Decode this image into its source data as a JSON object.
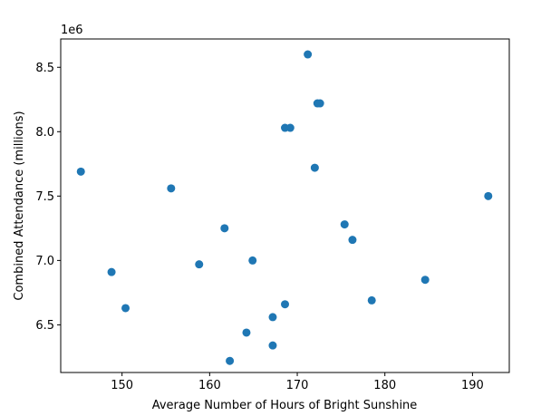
{
  "chart_data": {
    "type": "scatter",
    "title": "",
    "xlabel": "Average Number of Hours of Bright Sunshine",
    "ylabel": "Combined Attendance (millions)",
    "y_offset_label": "1e6",
    "xlim": [
      143.0,
      194.2
    ],
    "ylim": [
      6.13,
      8.72
    ],
    "xticks": [
      150,
      160,
      170,
      180,
      190
    ],
    "xtick_labels": [
      "150",
      "160",
      "170",
      "180",
      "190"
    ],
    "yticks": [
      6.5,
      7.0,
      7.5,
      8.0,
      8.5
    ],
    "ytick_labels": [
      "6.5",
      "7.0",
      "7.5",
      "8.0",
      "8.5"
    ],
    "grid": false,
    "legend": false,
    "marker_color": "#1f77b4",
    "series": [
      {
        "x": [
          171.2,
          172.3,
          172.6,
          168.6,
          169.2,
          145.3,
          172.0,
          155.6,
          191.8,
          161.7,
          175.4,
          176.3,
          164.9,
          158.8,
          148.8,
          184.6,
          178.5,
          150.4,
          168.6,
          167.2,
          164.2,
          167.2,
          162.3
        ],
        "y": [
          8.6,
          8.22,
          8.22,
          8.03,
          8.03,
          7.69,
          7.72,
          7.56,
          7.5,
          7.25,
          7.28,
          7.16,
          7.0,
          6.97,
          6.91,
          6.85,
          6.69,
          6.63,
          6.66,
          6.56,
          6.44,
          6.34,
          6.22
        ]
      }
    ]
  }
}
